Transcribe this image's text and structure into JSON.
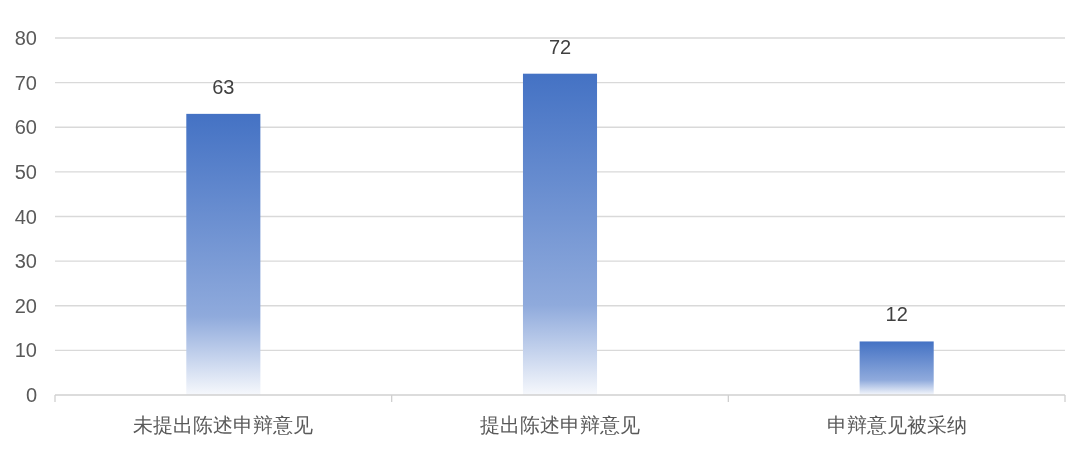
{
  "chart_data": {
    "type": "bar",
    "categories": [
      "未提出陈述申辩意见",
      "提出陈述申辩意见",
      "申辩意见被采纳"
    ],
    "values": [
      63,
      72,
      12
    ],
    "color": "#4472c4",
    "ylim": [
      0,
      80
    ],
    "yticks": [
      0,
      10,
      20,
      30,
      40,
      50,
      60,
      70,
      80
    ],
    "grid": "y",
    "data_labels": true
  }
}
